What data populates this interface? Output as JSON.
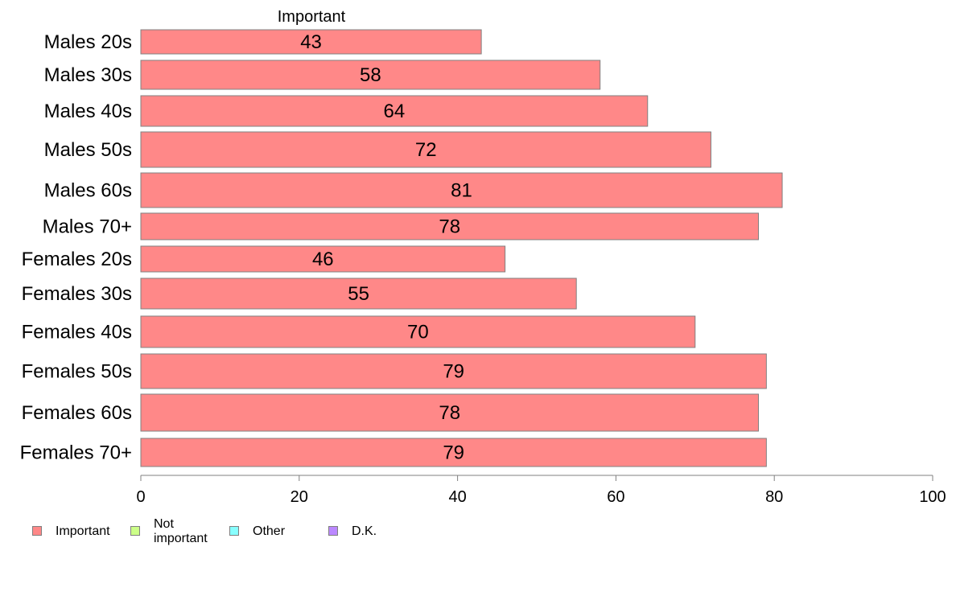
{
  "chart_data": {
    "type": "bar",
    "orientation": "horizontal",
    "series_header": "Important",
    "categories": [
      "Males 20s",
      "Males 30s",
      "Males 40s",
      "Males 50s",
      "Males 60s",
      "Males 70+",
      "Females 20s",
      "Females 30s",
      "Females 40s",
      "Females 50s",
      "Females 60s",
      "Females 70+"
    ],
    "series": [
      {
        "name": "Important",
        "values": [
          43,
          58,
          64,
          72,
          81,
          78,
          46,
          55,
          70,
          79,
          78,
          79
        ],
        "labels": [
          "43",
          "58",
          "64",
          "72",
          "81",
          "78",
          "46",
          "55",
          "70",
          "79",
          "78",
          "79"
        ],
        "color": "#ff8888"
      }
    ],
    "xlim": [
      0,
      100
    ],
    "xticks": [
      "0",
      "20",
      "40",
      "60",
      "80",
      "100"
    ],
    "grid": false,
    "legend_position": "bottom-left",
    "legend": [
      {
        "label": "Important",
        "color": "#ff8888"
      },
      {
        "label": "Not\nimportant",
        "color": "#ccff88"
      },
      {
        "label": "Other",
        "color": "#88ffff"
      },
      {
        "label": "D.K.",
        "color": "#bb88ff"
      }
    ]
  }
}
